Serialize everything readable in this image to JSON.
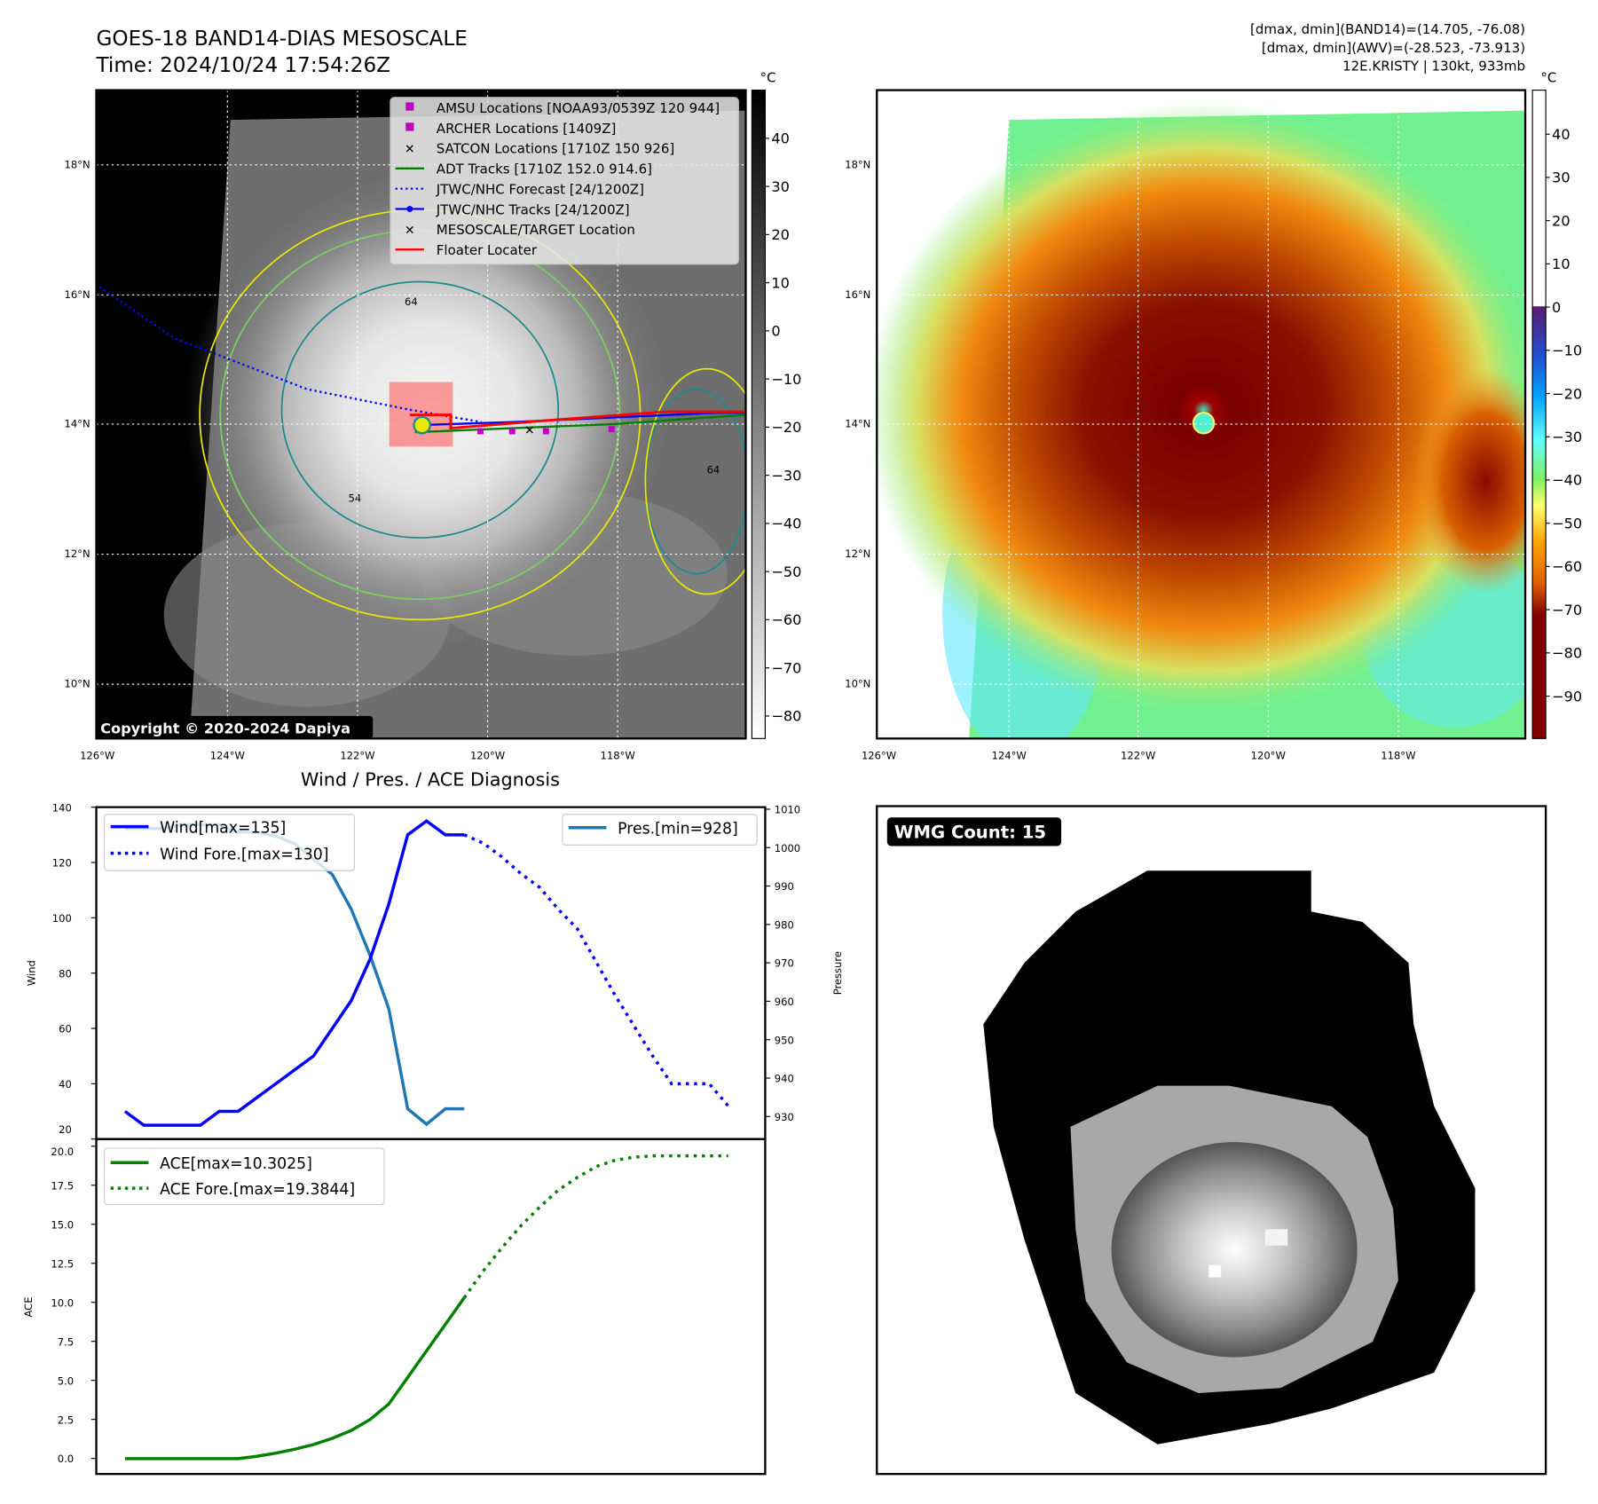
{
  "header": {
    "title_line1": "GOES-18 BAND14-DIAS MESOSCALE",
    "title_line2": "Time: 2024/10/24 17:54:26Z",
    "info_line1": "[dmax, dmin](BAND14)=(14.705, -76.08)",
    "info_line2": "[dmax, dmin](AWV)=(-28.523, -73.913)",
    "info_line3": "12E.KRISTY | 130kt, 933mb"
  },
  "maps": {
    "lat_labels": [
      "18°N",
      "16°N",
      "14°N",
      "12°N",
      "10°N"
    ],
    "lon_labels": [
      "126°W",
      "124°W",
      "122°W",
      "120°W",
      "118°W"
    ],
    "colorbar_unit": "°C",
    "left_colorbar_ticks": [
      "40",
      "30",
      "20",
      "10",
      "0",
      "−10",
      "−20",
      "−30",
      "−40",
      "−50",
      "−60",
      "−70",
      "−80"
    ],
    "right_colorbar_ticks": [
      "40",
      "30",
      "20",
      "10",
      "0",
      "−10",
      "−20",
      "−30",
      "−40",
      "−50",
      "−60",
      "−70",
      "−80",
      "−90"
    ],
    "copyright": "Copyright © 2020-2024 Dapiya",
    "contour_labels": [
      "64",
      "54",
      "64"
    ],
    "legend": [
      {
        "label": "AMSU Locations [NOAA93/0539Z 120 944]",
        "color": "#c000c0"
      },
      {
        "label": "ARCHER Locations [1409Z]",
        "color": "#c000c0"
      },
      {
        "label": "SATCON Locations [1710Z 150 926]",
        "color": "#00c0c0"
      },
      {
        "label": "ADT Tracks [1710Z 152.0 914.6]",
        "color": "#008000"
      },
      {
        "label": "JTWC/NHC Forecast [24/1200Z]",
        "color": "#0000ff"
      },
      {
        "label": "JTWC/NHC Tracks [24/1200Z]",
        "color": "#0000ff"
      },
      {
        "label": "MESOSCALE/TARGET Location",
        "color": "#ff0000"
      },
      {
        "label": "Floater Locater",
        "color": "#ff0000"
      }
    ]
  },
  "wmg": {
    "label": "WMG Count: 15"
  },
  "chart_data": [
    {
      "type": "line",
      "title": "Wind / Pres. / ACE Diagnosis",
      "ylabel": "Wind",
      "y2label": "Pressure",
      "ylim": [
        20,
        140
      ],
      "y2lim": [
        928,
        1010
      ],
      "yticks": [
        "140",
        "120",
        "100",
        "80",
        "60",
        "40",
        "20"
      ],
      "y2ticks": [
        "1010",
        "1000",
        "990",
        "980",
        "970",
        "960",
        "950",
        "940",
        "930"
      ],
      "x": [
        0,
        1,
        2,
        3,
        4,
        5,
        6,
        7,
        8,
        9,
        10,
        11,
        12,
        13,
        14,
        15,
        16,
        17,
        18,
        19,
        20,
        21,
        22,
        23,
        24,
        25,
        26,
        27,
        28,
        29,
        30,
        31,
        32
      ],
      "series": [
        {
          "name": "Wind[max=135]",
          "axis": "left",
          "style": "solid",
          "color": "#0000ff",
          "x": [
            0,
            1,
            2,
            3,
            4,
            5,
            6,
            7,
            8,
            9,
            10,
            11,
            12,
            13,
            14,
            15,
            16,
            17,
            18
          ],
          "values": [
            30,
            25,
            25,
            25,
            25,
            30,
            30,
            35,
            40,
            45,
            50,
            60,
            70,
            85,
            105,
            130,
            135,
            130,
            130
          ]
        },
        {
          "name": "Wind Fore.[max=130]",
          "axis": "left",
          "style": "dotted",
          "color": "#0000ff",
          "x": [
            18,
            19,
            20,
            21,
            22,
            23,
            24,
            25,
            26,
            27,
            28,
            29,
            30,
            31,
            32
          ],
          "values": [
            130,
            127,
            122,
            116,
            111,
            103,
            96,
            84,
            72,
            61,
            50,
            40,
            40,
            40,
            32
          ]
        },
        {
          "name": "Pres.[min=928]",
          "axis": "right",
          "style": "solid",
          "color": "#1f77b4",
          "x": [
            0,
            1,
            2,
            3,
            4,
            5,
            6,
            7,
            8,
            9,
            10,
            11,
            12,
            13,
            14,
            15,
            16,
            17,
            18
          ],
          "values": [
            1005,
            1005,
            1005,
            1006,
            1006,
            1006,
            1004,
            1004,
            1003,
            1001,
            997,
            993,
            984,
            972,
            958,
            932,
            928,
            932,
            932
          ]
        }
      ]
    },
    {
      "type": "line",
      "ylabel": "ACE",
      "ylim": [
        0,
        20
      ],
      "yticks": [
        "20.0",
        "17.5",
        "15.0",
        "12.5",
        "10.0",
        "7.5",
        "5.0",
        "2.5",
        "0.0"
      ],
      "series": [
        {
          "name": "ACE[max=10.3025]",
          "style": "solid",
          "color": "#008000",
          "x": [
            0,
            1,
            2,
            3,
            4,
            5,
            6,
            7,
            8,
            9,
            10,
            11,
            12,
            13,
            14,
            15,
            16,
            17,
            18
          ],
          "values": [
            0,
            0,
            0,
            0,
            0,
            0,
            0,
            0.15,
            0.35,
            0.6,
            0.9,
            1.3,
            1.8,
            2.5,
            3.5,
            5.2,
            6.9,
            8.6,
            10.3
          ]
        },
        {
          "name": "ACE Fore.[max=19.3844]",
          "style": "dotted",
          "color": "#008000",
          "x": [
            18,
            19,
            20,
            21,
            22,
            23,
            24,
            25,
            26,
            27,
            28,
            29,
            30,
            31,
            32
          ],
          "values": [
            10.3,
            12.0,
            13.5,
            14.9,
            16.1,
            17.2,
            18.0,
            18.7,
            19.1,
            19.3,
            19.38,
            19.38,
            19.38,
            19.38,
            19.38
          ]
        }
      ]
    }
  ]
}
